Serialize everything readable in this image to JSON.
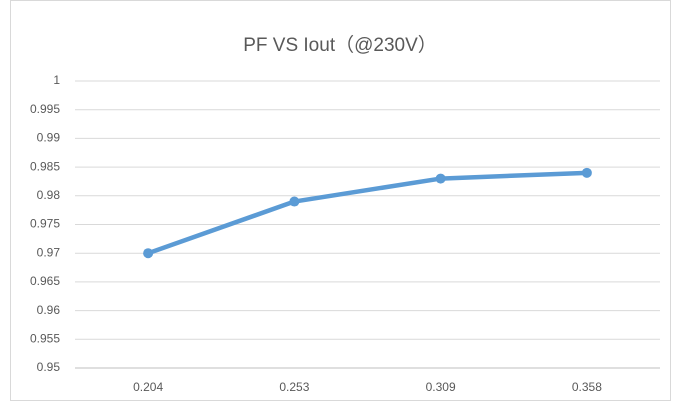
{
  "chart_data": {
    "type": "line",
    "title": "PF VS Iout（@230V）",
    "categories": [
      "0.204",
      "0.253",
      "0.309",
      "0.358"
    ],
    "series": [
      {
        "name": "PF",
        "color": "#5b9bd5",
        "values": [
          0.97,
          0.979,
          0.983,
          0.984
        ]
      }
    ],
    "ylim": [
      0.95,
      1
    ],
    "yticks": [
      0.95,
      0.955,
      0.96,
      0.965,
      0.97,
      0.975,
      0.98,
      0.985,
      0.99,
      0.995,
      1
    ],
    "grid": true
  }
}
